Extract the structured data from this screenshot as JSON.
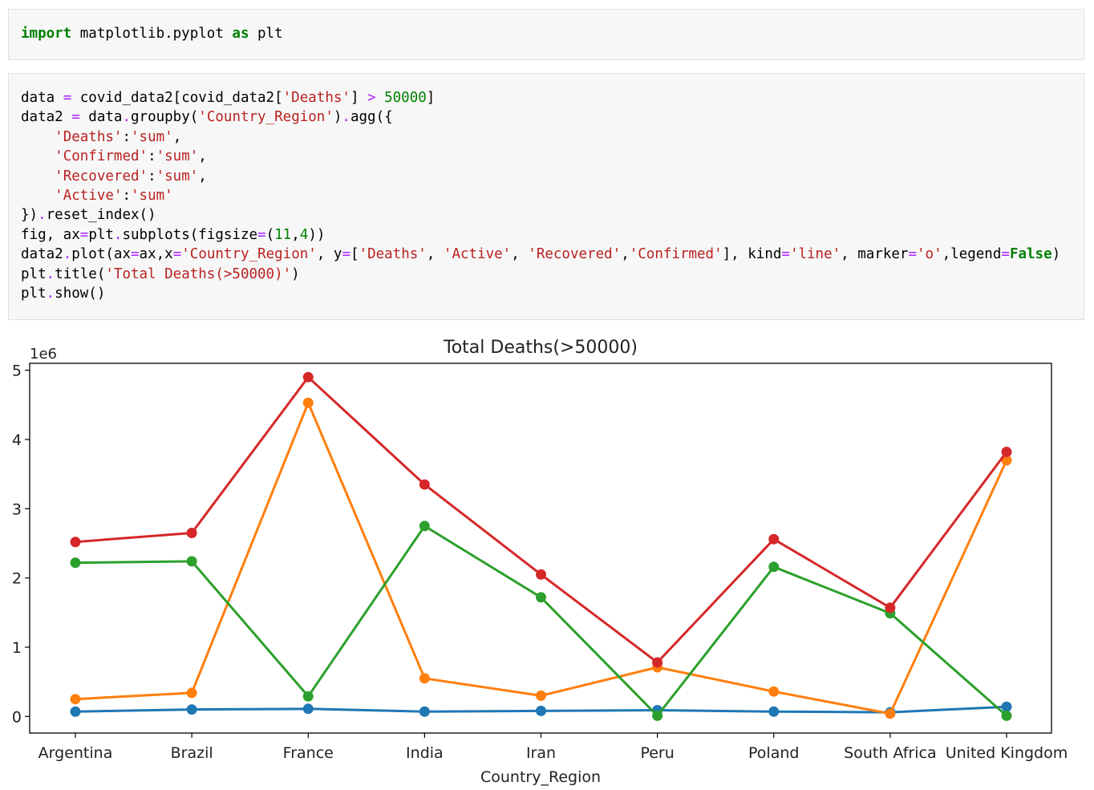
{
  "cells": [
    {
      "lines": [
        [
          {
            "t": "import",
            "c": "kw"
          },
          {
            "t": " matplotlib.pyplot ",
            "c": ""
          },
          {
            "t": "as",
            "c": "kw"
          },
          {
            "t": " plt",
            "c": ""
          }
        ]
      ]
    },
    {
      "lines": [
        [
          {
            "t": "data ",
            "c": ""
          },
          {
            "t": "=",
            "c": "op"
          },
          {
            "t": " covid_data2[covid_data2[",
            "c": ""
          },
          {
            "t": "'Deaths'",
            "c": "str"
          },
          {
            "t": "] ",
            "c": ""
          },
          {
            "t": ">",
            "c": "op"
          },
          {
            "t": " ",
            "c": ""
          },
          {
            "t": "50000",
            "c": "num"
          },
          {
            "t": "]",
            "c": ""
          }
        ],
        [
          {
            "t": "data2 ",
            "c": ""
          },
          {
            "t": "=",
            "c": "op"
          },
          {
            "t": " data",
            "c": ""
          },
          {
            "t": ".",
            "c": "op"
          },
          {
            "t": "groupby(",
            "c": ""
          },
          {
            "t": "'Country_Region'",
            "c": "str"
          },
          {
            "t": ")",
            "c": ""
          },
          {
            "t": ".",
            "c": "op"
          },
          {
            "t": "agg({",
            "c": ""
          }
        ],
        [
          {
            "t": "    ",
            "c": ""
          },
          {
            "t": "'Deaths'",
            "c": "str"
          },
          {
            "t": ":",
            "c": ""
          },
          {
            "t": "'sum'",
            "c": "str"
          },
          {
            "t": ",",
            "c": ""
          }
        ],
        [
          {
            "t": "    ",
            "c": ""
          },
          {
            "t": "'Confirmed'",
            "c": "str"
          },
          {
            "t": ":",
            "c": ""
          },
          {
            "t": "'sum'",
            "c": "str"
          },
          {
            "t": ",",
            "c": ""
          }
        ],
        [
          {
            "t": "    ",
            "c": ""
          },
          {
            "t": "'Recovered'",
            "c": "str"
          },
          {
            "t": ":",
            "c": ""
          },
          {
            "t": "'sum'",
            "c": "str"
          },
          {
            "t": ",",
            "c": ""
          }
        ],
        [
          {
            "t": "    ",
            "c": ""
          },
          {
            "t": "'Active'",
            "c": "str"
          },
          {
            "t": ":",
            "c": ""
          },
          {
            "t": "'sum'",
            "c": "str"
          }
        ],
        [
          {
            "t": "})",
            "c": ""
          },
          {
            "t": ".",
            "c": "op"
          },
          {
            "t": "reset_index()",
            "c": ""
          }
        ],
        [
          {
            "t": "fig, ax",
            "c": ""
          },
          {
            "t": "=",
            "c": "op"
          },
          {
            "t": "plt",
            "c": ""
          },
          {
            "t": ".",
            "c": "op"
          },
          {
            "t": "subplots(figsize",
            "c": ""
          },
          {
            "t": "=",
            "c": "op"
          },
          {
            "t": "(",
            "c": ""
          },
          {
            "t": "11",
            "c": "num"
          },
          {
            "t": ",",
            "c": ""
          },
          {
            "t": "4",
            "c": "num"
          },
          {
            "t": "))",
            "c": ""
          }
        ],
        [
          {
            "t": "data2",
            "c": ""
          },
          {
            "t": ".",
            "c": "op"
          },
          {
            "t": "plot(ax",
            "c": ""
          },
          {
            "t": "=",
            "c": "op"
          },
          {
            "t": "ax,x",
            "c": ""
          },
          {
            "t": "=",
            "c": "op"
          },
          {
            "t": "'Country_Region'",
            "c": "str"
          },
          {
            "t": ", y",
            "c": ""
          },
          {
            "t": "=",
            "c": "op"
          },
          {
            "t": "[",
            "c": ""
          },
          {
            "t": "'Deaths'",
            "c": "str"
          },
          {
            "t": ", ",
            "c": ""
          },
          {
            "t": "'Active'",
            "c": "str"
          },
          {
            "t": ", ",
            "c": ""
          },
          {
            "t": "'Recovered'",
            "c": "str"
          },
          {
            "t": ",",
            "c": ""
          },
          {
            "t": "'Confirmed'",
            "c": "str"
          },
          {
            "t": "], kind",
            "c": ""
          },
          {
            "t": "=",
            "c": "op"
          },
          {
            "t": "'line'",
            "c": "str"
          },
          {
            "t": ", marker",
            "c": ""
          },
          {
            "t": "=",
            "c": "op"
          },
          {
            "t": "'o'",
            "c": "str"
          },
          {
            "t": ",legend",
            "c": ""
          },
          {
            "t": "=",
            "c": "op"
          },
          {
            "t": "False",
            "c": "kwc"
          },
          {
            "t": ")",
            "c": ""
          }
        ],
        [
          {
            "t": "plt",
            "c": ""
          },
          {
            "t": ".",
            "c": "op"
          },
          {
            "t": "title(",
            "c": ""
          },
          {
            "t": "'Total Deaths(>50000)'",
            "c": "str"
          },
          {
            "t": ")",
            "c": ""
          }
        ],
        [
          {
            "t": "plt",
            "c": ""
          },
          {
            "t": ".",
            "c": "op"
          },
          {
            "t": "show()",
            "c": ""
          }
        ]
      ]
    }
  ],
  "chart_data": {
    "type": "line",
    "title": "Total Deaths(>50000)",
    "xlabel": "Country_Region",
    "ylabel": "",
    "y_offset_label": "1e6",
    "y_scale": 1000000,
    "ylim": [
      -0.24,
      5.1
    ],
    "yticks": [
      0,
      1,
      2,
      3,
      4,
      5
    ],
    "grid": false,
    "legend": false,
    "categories": [
      "Argentina",
      "Brazil",
      "France",
      "India",
      "Iran",
      "Peru",
      "Poland",
      "South Africa",
      "United Kingdom"
    ],
    "tick_labels": [
      "Argentina",
      "Brazil",
      "France",
      "India",
      "Iran",
      "Peru",
      "Poland",
      "South Africa",
      "United Kingdom"
    ],
    "series": [
      {
        "color": "#1f77b4",
        "values": [
          0.07,
          0.1,
          0.11,
          0.07,
          0.08,
          0.09,
          0.07,
          0.06,
          0.14
        ]
      },
      {
        "color": "#ff7f0e",
        "values": [
          0.25,
          0.34,
          4.53,
          0.55,
          0.3,
          0.71,
          0.36,
          0.04,
          3.7
        ]
      },
      {
        "color": "#2ca02c",
        "values": [
          2.22,
          2.24,
          0.29,
          2.75,
          1.72,
          0.01,
          2.16,
          1.49,
          0.01
        ]
      },
      {
        "color": "#d62728",
        "values": [
          2.52,
          2.65,
          4.9,
          3.35,
          2.05,
          0.78,
          2.56,
          1.57,
          3.82
        ]
      }
    ]
  }
}
